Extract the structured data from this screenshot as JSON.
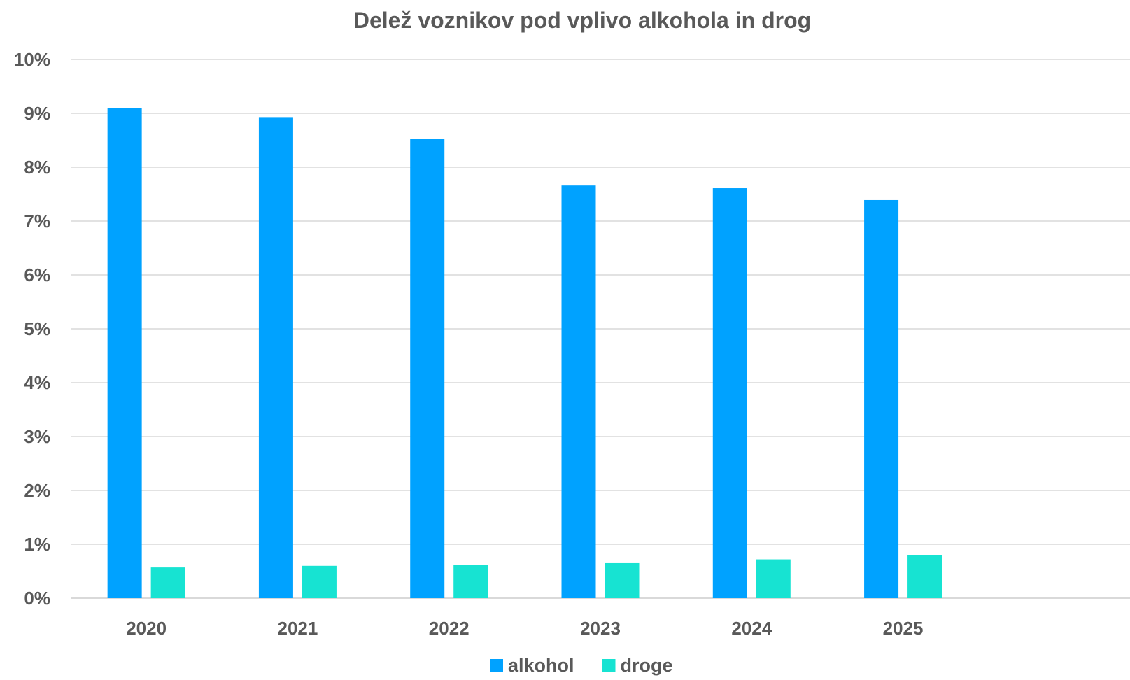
{
  "chart_data": {
    "type": "bar",
    "title": "Delež voznikov pod vplivo alkohola in drog",
    "xlabel": "",
    "ylabel": "",
    "categories": [
      "2020",
      "2021",
      "2022",
      "2023",
      "2024",
      "2025"
    ],
    "x_slots": 7,
    "series": [
      {
        "name": "alkohol",
        "color": "#00A2FF",
        "values": [
          9.1,
          8.93,
          8.53,
          7.66,
          7.61,
          7.39
        ]
      },
      {
        "name": "droge",
        "color": "#17E3D2",
        "values": [
          0.57,
          0.6,
          0.62,
          0.65,
          0.72,
          0.8
        ]
      }
    ],
    "ylim": [
      0,
      10
    ],
    "yticks": [
      0,
      1,
      2,
      3,
      4,
      5,
      6,
      7,
      8,
      9,
      10
    ],
    "ytick_labels": [
      "0%",
      "1%",
      "2%",
      "3%",
      "4%",
      "5%",
      "6%",
      "7%",
      "8%",
      "9%",
      "10%"
    ],
    "grid": true,
    "gridline_color": "#D9D9D9",
    "text_color": "#595959",
    "legend_position": "bottom"
  }
}
